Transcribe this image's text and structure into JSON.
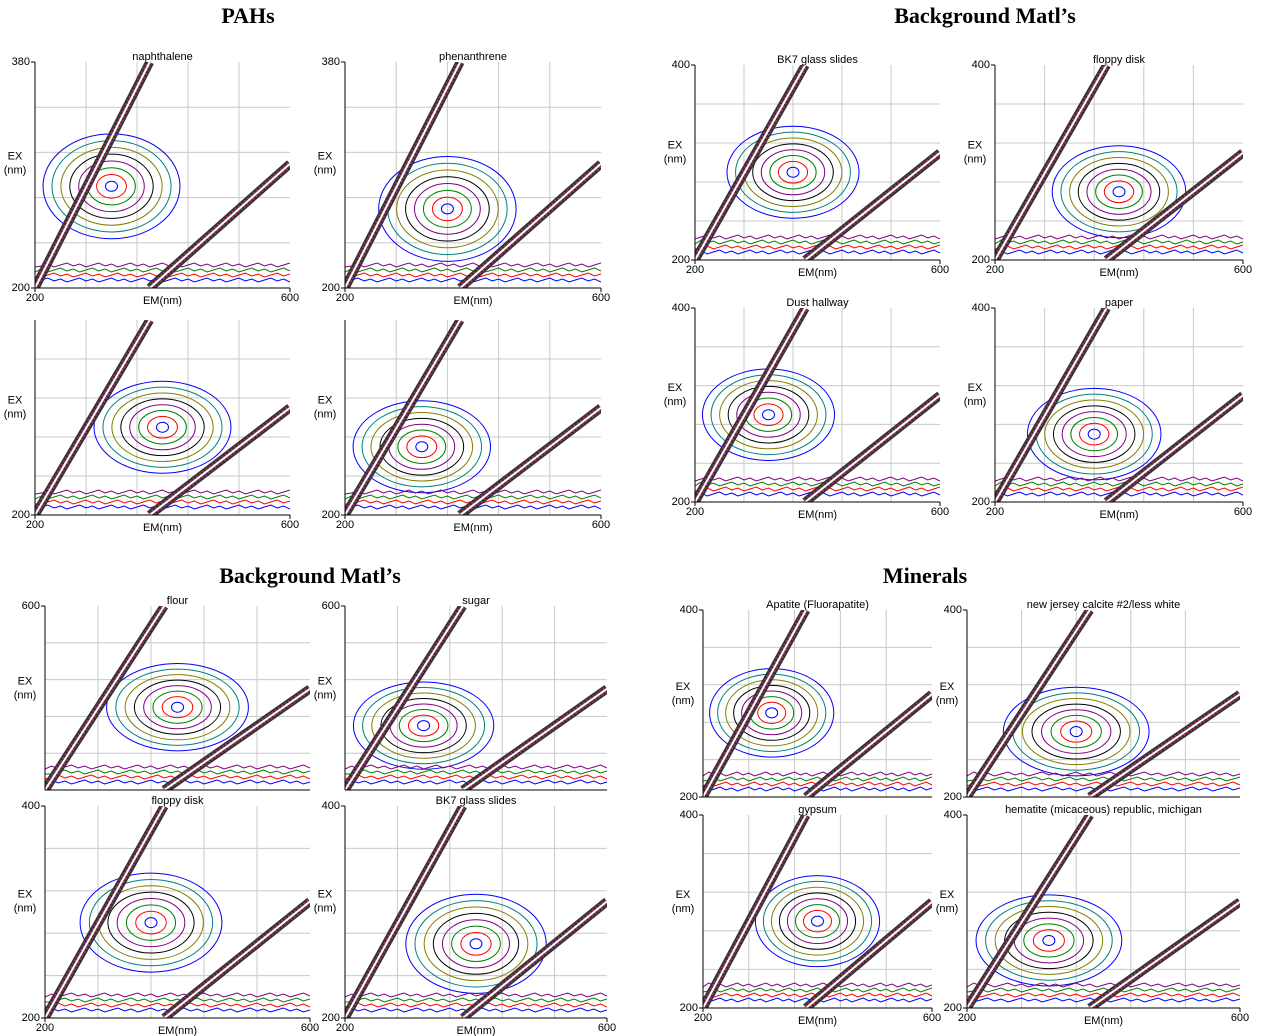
{
  "groups": [
    {
      "title": "PAHs",
      "panels": [
        {
          "title": "naphthalene",
          "xlabel": "EM(nm)",
          "ylabel": [
            "EX",
            "(nm)"
          ],
          "xlim": [
            200,
            600
          ],
          "xticks": [
            200,
            600
          ],
          "ylim": [
            200,
            380
          ],
          "yticks": [
            200,
            380
          ]
        },
        {
          "title": "phenanthrene",
          "xlabel": "EM(nm)",
          "ylabel": [
            "EX",
            "(nm)"
          ],
          "xlim": [
            200,
            600
          ],
          "xticks": [
            200,
            600
          ],
          "ylim": [
            200,
            380
          ],
          "yticks": [
            200,
            380
          ]
        },
        {
          "xlabel": "EM(nm)",
          "ylabel": [
            "EX",
            "(nm)"
          ],
          "xlim": [
            200,
            600
          ],
          "xticks": [
            200,
            600
          ],
          "ylim": [
            200,
            380
          ],
          "yticks": [
            200
          ]
        },
        {
          "xlabel": "EM(nm)",
          "ylabel": [
            "EX",
            "(nm)"
          ],
          "xlim": [
            200,
            600
          ],
          "xticks": [
            200,
            600
          ],
          "ylim": [
            200,
            380
          ],
          "yticks": [
            200
          ]
        }
      ]
    },
    {
      "title": "Background Matl’s",
      "panels": [
        {
          "title": "BK7 glass slides",
          "xlabel": "EM(nm)",
          "ylabel": [
            "EX",
            "(nm)"
          ],
          "xlim": [
            200,
            600
          ],
          "xticks": [
            200,
            600
          ],
          "ylim": [
            200,
            400
          ],
          "yticks": [
            200,
            400
          ]
        },
        {
          "title": "floppy disk",
          "xlabel": "EM(nm)",
          "ylabel": [
            "EX",
            "(nm)"
          ],
          "xlim": [
            200,
            600
          ],
          "xticks": [
            200,
            600
          ],
          "ylim": [
            200,
            400
          ],
          "yticks": [
            200,
            400
          ]
        },
        {
          "title": "Dust hallway",
          "xlabel": "EM(nm)",
          "ylabel": [
            "EX",
            "(nm)"
          ],
          "xlim": [
            200,
            600
          ],
          "xticks": [
            200,
            600
          ],
          "ylim": [
            200,
            400
          ],
          "yticks": [
            200,
            400
          ]
        },
        {
          "title": "paper",
          "xlabel": "EM(nm)",
          "ylabel": [
            "EX",
            "(nm)"
          ],
          "xlim": [
            200,
            600
          ],
          "xticks": [
            200,
            600
          ],
          "ylim": [
            200,
            400
          ],
          "yticks": [
            200,
            400
          ]
        }
      ]
    },
    {
      "title": "Background Matl’s",
      "panels": [
        {
          "title": "flour",
          "ylabel": [
            "EX",
            "(nm)"
          ],
          "ylim": [
            200,
            600
          ],
          "yticks": [
            600
          ]
        },
        {
          "title": "sugar",
          "ylabel": [
            "EX",
            "(nm)"
          ],
          "ylim": [
            200,
            600
          ],
          "yticks": [
            600
          ]
        },
        {
          "title": "floppy disk",
          "xlabel": "EM(nm)",
          "ylabel": [
            "EX",
            "(nm)"
          ],
          "xlim": [
            200,
            600
          ],
          "xticks": [
            200,
            600
          ],
          "ylim": [
            200,
            400
          ],
          "yticks": [
            200,
            400
          ]
        },
        {
          "title": "BK7 glass slides",
          "xlabel": "EM(nm)",
          "ylabel": [
            "EX",
            "(nm)"
          ],
          "xlim": [
            200,
            600
          ],
          "xticks": [
            200,
            600
          ],
          "ylim": [
            200,
            400
          ],
          "yticks": [
            200,
            400
          ]
        }
      ]
    },
    {
      "title": "Minerals",
      "panels": [
        {
          "title": "Apatite (Fluorapatite)",
          "ylabel": [
            "EX",
            "(nm)"
          ],
          "ylim": [
            200,
            400
          ],
          "yticks": [
            200,
            400
          ]
        },
        {
          "title": "new jersey calcite #2/less white",
          "ylabel": [
            "EX",
            "(nm)"
          ],
          "ylim": [
            200,
            400
          ],
          "yticks": [
            200,
            400
          ]
        },
        {
          "title": "gypsum",
          "xlabel": "EM(nm)",
          "ylabel": [
            "EX",
            "(nm)"
          ],
          "xlim": [
            200,
            600
          ],
          "xticks": [
            200,
            600
          ],
          "ylim": [
            200,
            400
          ],
          "yticks": [
            200,
            400
          ]
        },
        {
          "title": "hematite (micaceous) republic, michigan",
          "xlabel": "EM(nm)",
          "ylabel": [
            "EX",
            "(nm)"
          ],
          "xlim": [
            200,
            600
          ],
          "xticks": [
            200,
            600
          ],
          "ylim": [
            200,
            400
          ],
          "yticks": [
            200,
            400
          ]
        }
      ]
    }
  ]
}
